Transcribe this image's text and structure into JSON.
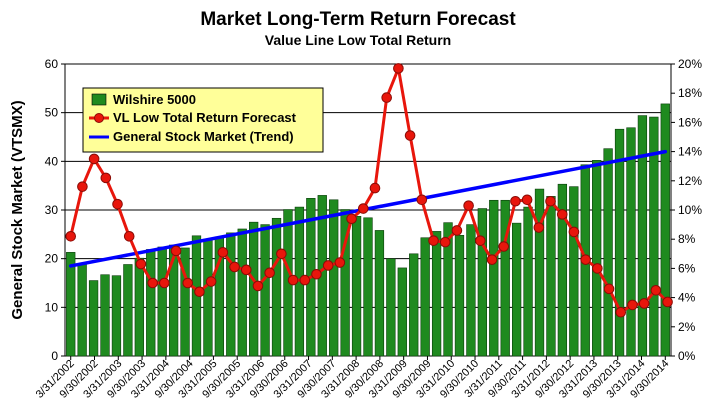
{
  "chart_data": {
    "type": "bar",
    "title": "Market Long-Term Return Forecast",
    "subtitle": "Value Line Low Total Return",
    "ylabel": "General Stock Market (VTSMX)",
    "ylim": [
      0,
      60
    ],
    "yticks": [
      "0",
      "10",
      "20",
      "30",
      "40",
      "50",
      "60"
    ],
    "y2lim": [
      0,
      20
    ],
    "y2ticks": [
      "0%",
      "2%",
      "4%",
      "6%",
      "8%",
      "10%",
      "12%",
      "14%",
      "16%",
      "18%",
      "20%"
    ],
    "grid": true,
    "legend_position": "top-left",
    "x_labels": [
      "3/31/2002",
      "9/30/2002",
      "3/31/2003",
      "9/30/2003",
      "3/31/2004",
      "9/30/2004",
      "3/31/2005",
      "9/30/2005",
      "3/31/2006",
      "9/30/2006",
      "3/31/2007",
      "9/30/2007",
      "3/31/2008",
      "9/30/2008",
      "3/31/2009",
      "9/30/2009",
      "3/31/2010",
      "9/30/2010",
      "3/31/2011",
      "9/30/2011",
      "3/31/2012",
      "9/30/2012",
      "3/31/2013",
      "9/30/2013",
      "3/31/2014",
      "9/30/2014"
    ],
    "series": [
      {
        "name": "Wilshire 5000",
        "kind": "bar",
        "axis": "left",
        "color": "#1f8a1f",
        "values": [
          21.3,
          19.0,
          15.5,
          16.7,
          16.5,
          18.8,
          20.1,
          21.9,
          22.4,
          22.8,
          22.2,
          24.7,
          24.0,
          24.5,
          25.3,
          26.1,
          27.5,
          27.0,
          28.3,
          30.1,
          30.6,
          32.4,
          33.0,
          32.1,
          30.1,
          28.7,
          28.4,
          25.8,
          20.0,
          18.1,
          21.0,
          24.3,
          25.6,
          27.4,
          24.8,
          27.0,
          30.3,
          32.0,
          32.0,
          27.3,
          30.6,
          34.3,
          32.8,
          35.3,
          34.8,
          39.3,
          40.2,
          42.6,
          46.6,
          46.9,
          49.4,
          49.1,
          51.8
        ]
      },
      {
        "name": "VL Low Total Return Forecast",
        "kind": "line-markers",
        "axis": "right",
        "color": "#e8160c",
        "values": [
          8.2,
          11.6,
          13.5,
          12.2,
          10.4,
          8.2,
          6.3,
          5.0,
          5.0,
          7.2,
          5.0,
          4.4,
          5.1,
          7.1,
          6.1,
          5.9,
          4.8,
          5.7,
          7.0,
          5.2,
          5.2,
          5.6,
          6.2,
          6.4,
          9.4,
          10.1,
          11.5,
          17.7,
          19.7,
          15.1,
          10.7,
          7.9,
          7.8,
          8.6,
          10.3,
          7.9,
          6.6,
          7.5,
          10.6,
          10.7,
          8.8,
          10.6,
          9.7,
          8.5,
          6.6,
          6.0,
          4.6,
          3.0,
          3.5,
          3.6,
          4.5,
          3.7
        ]
      },
      {
        "name": "General Stock Market (Trend)",
        "kind": "line",
        "axis": "left",
        "color": "#0000ff",
        "values": [
          18.5,
          42.0
        ]
      }
    ]
  }
}
